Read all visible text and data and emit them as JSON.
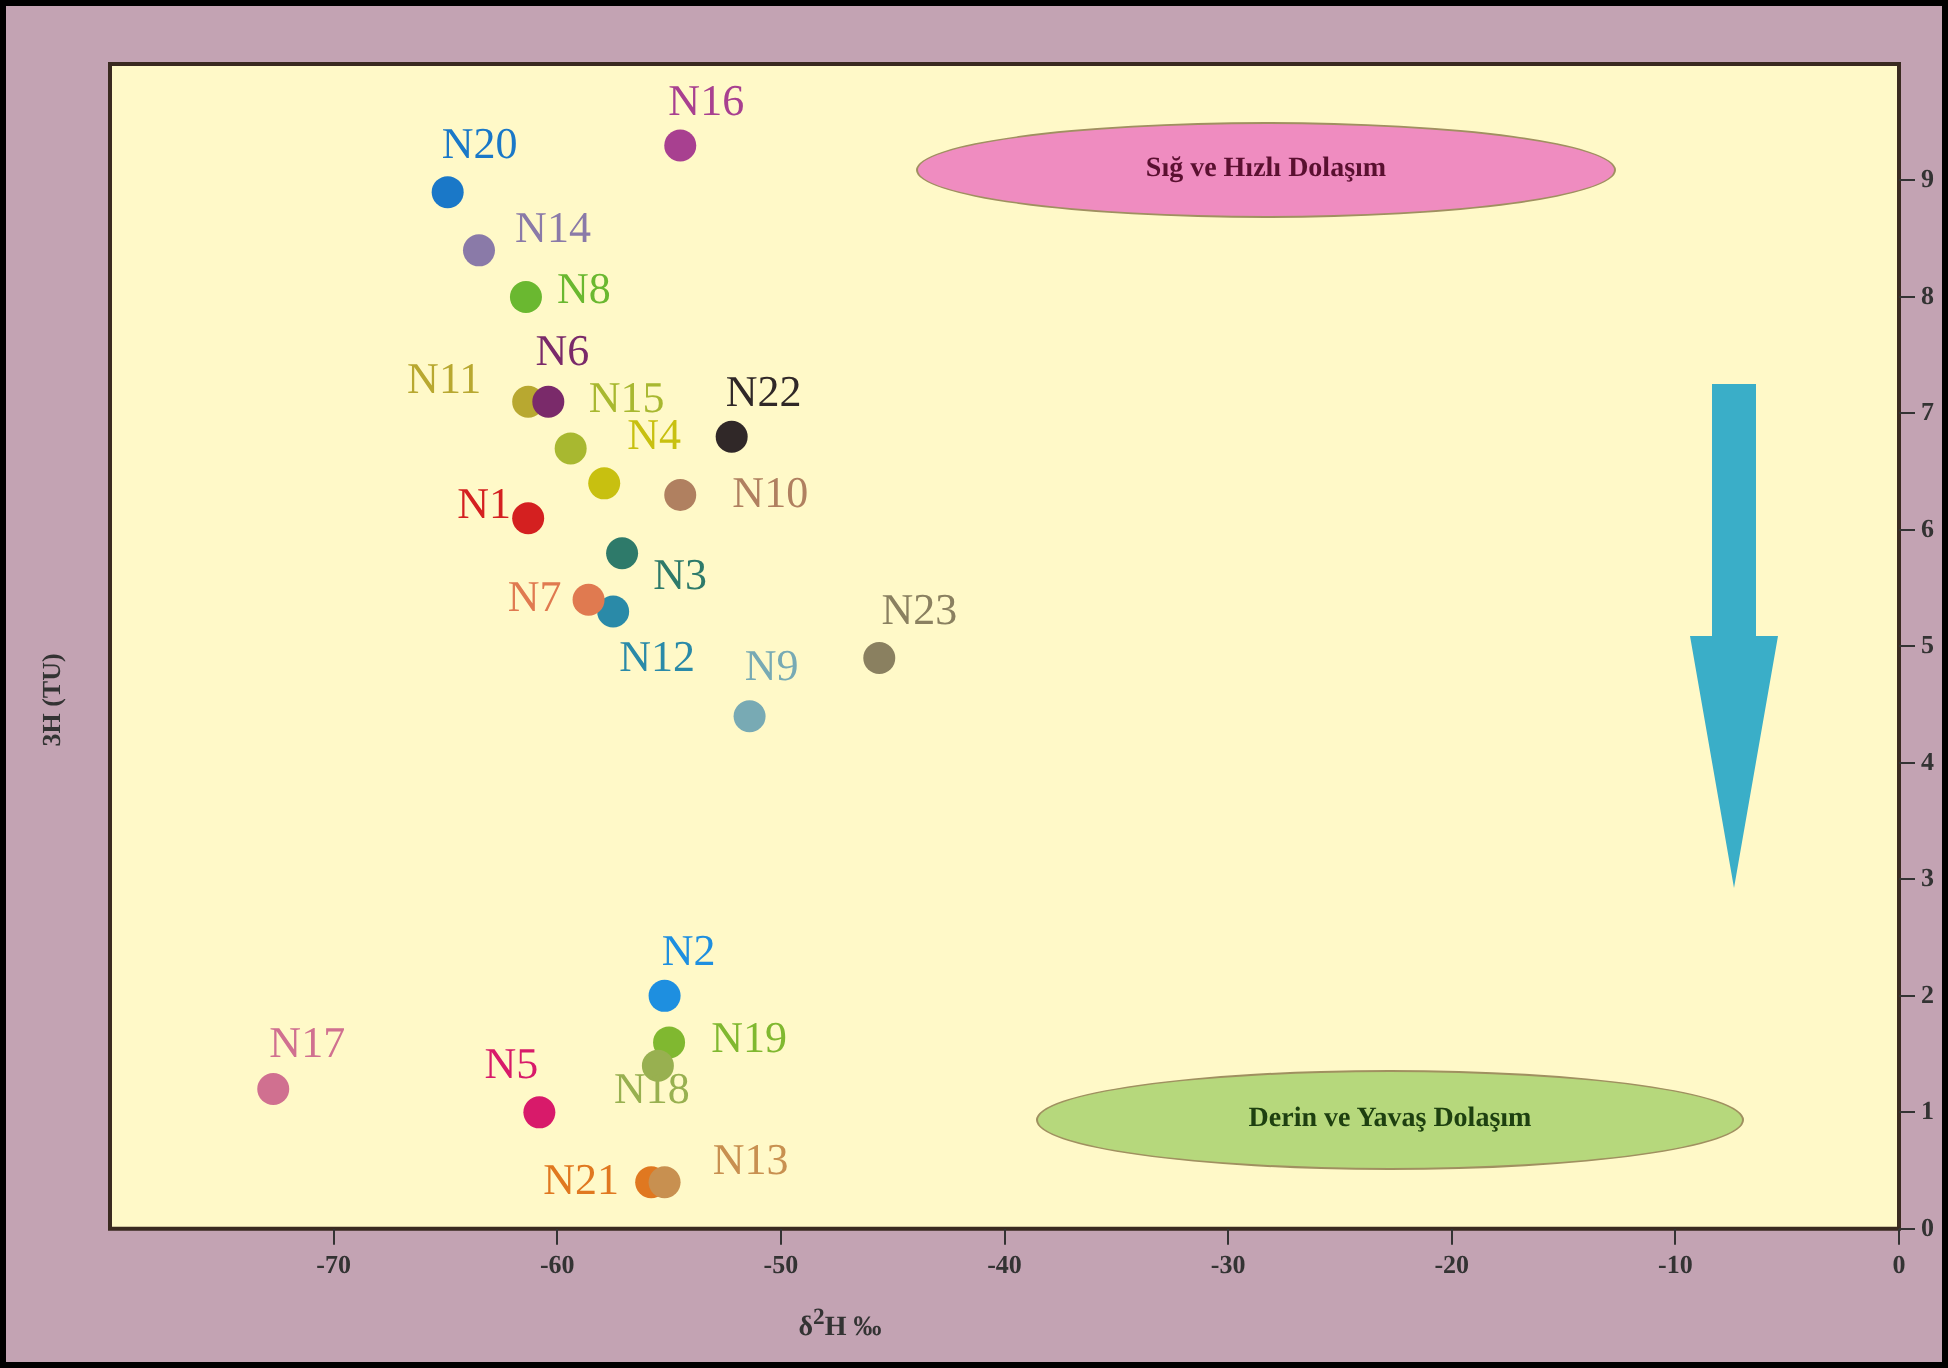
{
  "chart_data": {
    "type": "scatter",
    "xlabel": "δ$^{2}$H ‰",
    "ylabel": "3H (TU)",
    "xlim": [
      -80,
      0
    ],
    "xticks": [
      -70,
      -60,
      -50,
      -40,
      -30,
      -20,
      -10,
      0
    ],
    "ylim": [
      0,
      10
    ],
    "yticks": [
      0,
      1,
      2,
      3,
      4,
      5,
      6,
      7,
      8,
      9
    ],
    "grid": false,
    "legend": false,
    "marker": "circle",
    "annotations": [
      "Sığ ve Hızlı Dolaşım",
      "Derin ve Yavaş Dolaşım"
    ],
    "series": [
      {
        "name": "N1",
        "color": "#d42020",
        "x": [
          -61.3
        ],
        "values": [
          6.1
        ]
      },
      {
        "name": "N2",
        "color": "#1e8fe0",
        "x": [
          -55.2
        ],
        "values": [
          2.0
        ]
      },
      {
        "name": "N3",
        "color": "#2e7a6a",
        "x": [
          -57.1
        ],
        "values": [
          5.8
        ]
      },
      {
        "name": "N4",
        "color": "#c8c010",
        "x": [
          -57.9
        ],
        "values": [
          6.4
        ]
      },
      {
        "name": "N5",
        "color": "#d81a6a",
        "x": [
          -60.8
        ],
        "values": [
          1.0
        ]
      },
      {
        "name": "N6",
        "color": "#7a2a6a",
        "x": [
          -60.4
        ],
        "values": [
          7.1
        ]
      },
      {
        "name": "N7",
        "color": "#e07a50",
        "x": [
          -58.6
        ],
        "values": [
          5.4
        ]
      },
      {
        "name": "N8",
        "color": "#6ab830",
        "x": [
          -61.4
        ],
        "values": [
          8.0
        ]
      },
      {
        "name": "N9",
        "color": "#78aab4",
        "x": [
          -51.4
        ],
        "values": [
          4.4
        ]
      },
      {
        "name": "N10",
        "color": "#b08060",
        "x": [
          -54.5
        ],
        "values": [
          6.3
        ]
      },
      {
        "name": "N11",
        "color": "#b8a830",
        "x": [
          -61.3
        ],
        "values": [
          7.1
        ]
      },
      {
        "name": "N12",
        "color": "#2a8aa8",
        "x": [
          -57.5
        ],
        "values": [
          5.3
        ]
      },
      {
        "name": "N13",
        "color": "#c89050",
        "x": [
          -55.2
        ],
        "values": [
          0.4
        ]
      },
      {
        "name": "N14",
        "color": "#8a7aa8",
        "x": [
          -63.5
        ],
        "values": [
          8.4
        ]
      },
      {
        "name": "N15",
        "color": "#a8b830",
        "x": [
          -59.4
        ],
        "values": [
          6.7
        ]
      },
      {
        "name": "N16",
        "color": "#a84090",
        "x": [
          -54.5
        ],
        "values": [
          9.3
        ]
      },
      {
        "name": "N17",
        "color": "#d07090",
        "x": [
          -72.7
        ],
        "values": [
          1.2
        ]
      },
      {
        "name": "N18",
        "color": "#98b050",
        "x": [
          -55.5
        ],
        "values": [
          1.4
        ]
      },
      {
        "name": "N19",
        "color": "#80b830",
        "x": [
          -55.0
        ],
        "values": [
          1.6
        ]
      },
      {
        "name": "N20",
        "color": "#1a78c8",
        "x": [
          -64.9
        ],
        "values": [
          8.9
        ]
      },
      {
        "name": "N21",
        "color": "#e07820",
        "x": [
          -55.8
        ],
        "values": [
          0.4
        ]
      },
      {
        "name": "N22",
        "color": "#302828",
        "x": [
          -52.2
        ],
        "values": [
          6.8
        ]
      },
      {
        "name": "N23",
        "color": "#8a8060",
        "x": [
          -45.6
        ],
        "values": [
          4.9
        ]
      }
    ]
  }
}
